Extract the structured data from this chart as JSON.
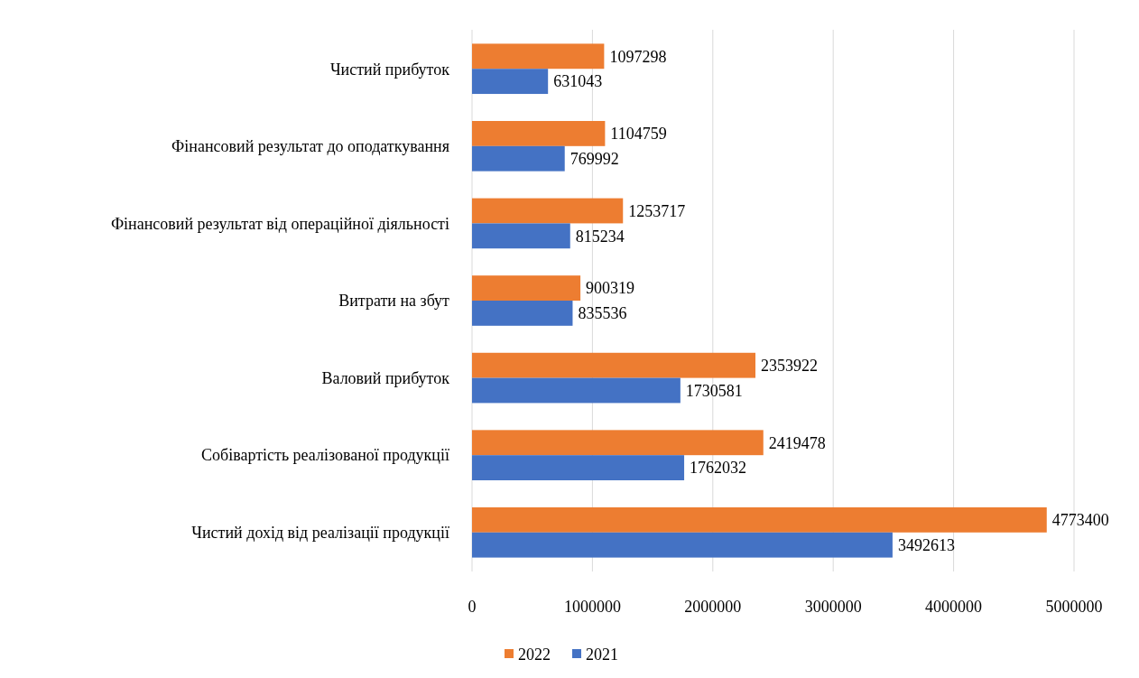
{
  "chart_data": {
    "type": "bar",
    "orientation": "horizontal",
    "categories": [
      "Чистий прибуток",
      "Фінансовий результат до оподаткування",
      "Фінансовий результат від операційної діяльності",
      "Витрати на збут",
      "Валовий прибуток",
      "Собівартість реалізованої продукції",
      "Чистий дохід від реалізації продукції"
    ],
    "series": [
      {
        "name": "2022",
        "color": "#ed7d31",
        "values": [
          1097298,
          1104759,
          1253717,
          900319,
          2353922,
          2419478,
          4773400
        ]
      },
      {
        "name": "2021",
        "color": "#4472c4",
        "values": [
          631043,
          769992,
          815234,
          835536,
          1730581,
          1762032,
          3492613
        ]
      }
    ],
    "xlim": [
      0,
      5000000
    ],
    "xticks": [
      0,
      1000000,
      2000000,
      3000000,
      4000000,
      5000000
    ],
    "grid": "x",
    "legend": "bottom",
    "data_labels": true
  }
}
